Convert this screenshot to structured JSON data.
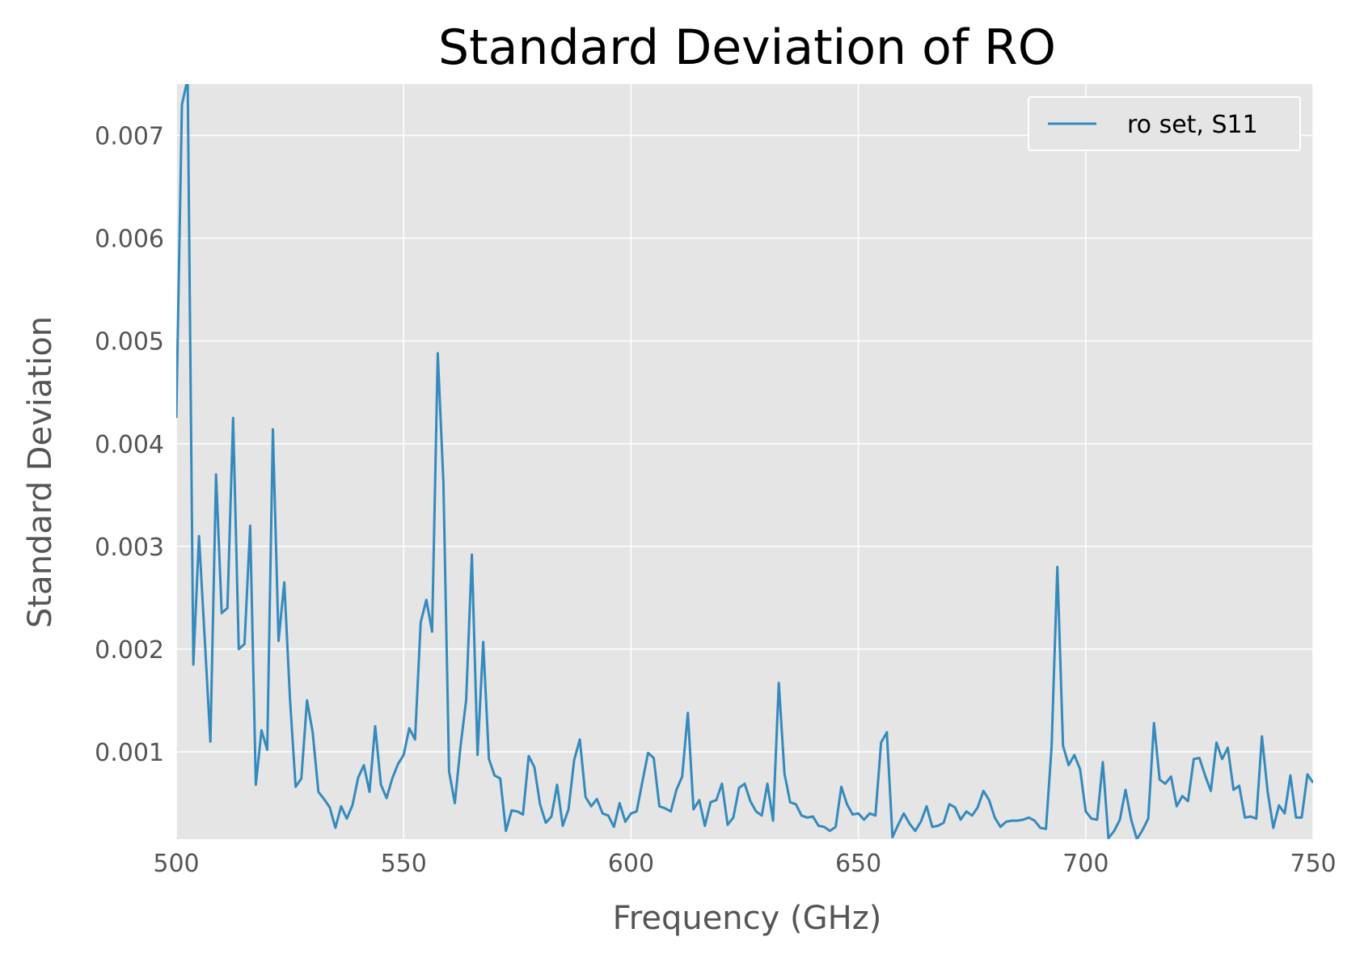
{
  "chart_data": {
    "type": "line",
    "title": "Standard Deviation of RO",
    "xlabel": "Frequency (GHz)",
    "ylabel": "Standard Deviation",
    "xlim": [
      500,
      750
    ],
    "ylim": [
      0.00015,
      0.0075
    ],
    "xticks": [
      500,
      550,
      600,
      650,
      700,
      750
    ],
    "xtick_labels": [
      "500",
      "550",
      "600",
      "650",
      "700",
      "750"
    ],
    "yticks": [
      0.001,
      0.002,
      0.003,
      0.004,
      0.005,
      0.006,
      0.007
    ],
    "ytick_labels": [
      "0.001",
      "0.002",
      "0.003",
      "0.004",
      "0.005",
      "0.006",
      "0.007"
    ],
    "grid": true,
    "legend_position": "top-right",
    "background": "#e5e5e5",
    "series": [
      {
        "name": "ro set, S11",
        "color": "#348abd",
        "x": [
          500,
          501.25,
          502.5,
          503.75,
          505,
          506.25,
          507.5,
          508.75,
          510,
          511.25,
          512.5,
          513.75,
          515,
          516.25,
          517.5,
          518.75,
          520,
          521.25,
          522.5,
          523.75,
          525,
          526.25,
          527.5,
          528.75,
          530,
          531.25,
          532.5,
          533.75,
          535,
          536.25,
          537.5,
          538.75,
          540,
          541.25,
          542.5,
          543.75,
          545,
          546.25,
          547.5,
          548.75,
          550,
          551.25,
          552.5,
          553.75,
          555,
          556.25,
          557.5,
          558.75,
          560,
          561.25,
          562.5,
          563.75,
          565,
          566.25,
          567.5,
          568.75,
          570,
          571.25,
          572.5,
          573.75,
          575,
          576.25,
          577.5,
          578.75,
          580,
          581.25,
          582.5,
          583.75,
          585,
          586.25,
          587.5,
          588.75,
          590,
          591.25,
          592.5,
          593.75,
          595,
          596.25,
          597.5,
          598.75,
          600,
          601.25,
          602.5,
          603.75,
          605,
          606.25,
          607.5,
          608.75,
          610,
          611.25,
          612.5,
          613.75,
          615,
          616.25,
          617.5,
          618.75,
          620,
          621.25,
          622.5,
          623.75,
          625,
          626.25,
          627.5,
          628.75,
          630,
          631.25,
          632.5,
          633.75,
          635,
          636.25,
          637.5,
          638.75,
          640,
          641.25,
          642.5,
          643.75,
          645,
          646.25,
          647.5,
          648.75,
          650,
          651.25,
          652.5,
          653.75,
          655,
          656.25,
          657.5,
          658.75,
          660,
          661.25,
          662.5,
          663.75,
          665,
          666.25,
          667.5,
          668.75,
          670,
          671.25,
          672.5,
          673.75,
          675,
          676.25,
          677.5,
          678.75,
          680,
          681.25,
          682.5,
          683.75,
          685,
          686.25,
          687.5,
          688.75,
          690,
          691.25,
          692.5,
          693.75,
          695,
          696.25,
          697.5,
          698.75,
          700,
          701.25,
          702.5,
          703.75,
          705,
          706.25,
          707.5,
          708.75,
          710,
          711.25,
          712.5,
          713.75,
          715,
          716.25,
          717.5,
          718.75,
          720,
          721.25,
          722.5,
          723.75,
          725,
          726.25,
          727.5,
          728.75,
          730,
          731.25,
          732.5,
          733.75,
          735,
          736.25,
          737.5,
          738.75,
          740,
          741.25,
          742.5,
          743.75,
          745,
          746.25,
          747.5,
          748.75,
          750
        ],
        "y": [
          0.00425,
          0.0073,
          0.00755,
          0.00185,
          0.0031,
          0.0021,
          0.0011,
          0.0037,
          0.00235,
          0.0024,
          0.00425,
          0.002,
          0.00205,
          0.0032,
          0.00068,
          0.00121,
          0.00102,
          0.00414,
          0.00208,
          0.00265,
          0.00152,
          0.00066,
          0.00074,
          0.0015,
          0.00119,
          0.00061,
          0.00054,
          0.00046,
          0.00026,
          0.00047,
          0.00035,
          0.00048,
          0.00075,
          0.00087,
          0.00061,
          0.00125,
          0.00068,
          0.00055,
          0.00074,
          0.00088,
          0.00097,
          0.00123,
          0.00112,
          0.00226,
          0.00248,
          0.00217,
          0.00488,
          0.00362,
          0.00081,
          0.0005,
          0.00105,
          0.0015,
          0.00292,
          0.00097,
          0.00207,
          0.00093,
          0.00077,
          0.00074,
          0.00023,
          0.00043,
          0.00042,
          0.00039,
          0.00096,
          0.00085,
          0.00049,
          0.00031,
          0.00037,
          0.00068,
          0.00028,
          0.00044,
          0.00092,
          0.00112,
          0.00056,
          0.00047,
          0.00054,
          0.0004,
          0.00038,
          0.00027,
          0.0005,
          0.00032,
          0.0004,
          0.00042,
          0.00071,
          0.00099,
          0.00094,
          0.00047,
          0.00045,
          0.00042,
          0.00063,
          0.00076,
          0.00138,
          0.00044,
          0.00053,
          0.00028,
          0.00051,
          0.00053,
          0.00069,
          0.00029,
          0.00036,
          0.00065,
          0.00069,
          0.00052,
          0.00042,
          0.00038,
          0.00069,
          0.00033,
          0.00167,
          0.00079,
          0.00051,
          0.00049,
          0.00038,
          0.00036,
          0.00037,
          0.00028,
          0.00027,
          0.00023,
          0.00027,
          0.00066,
          0.00049,
          0.00039,
          0.0004,
          0.00034,
          0.0004,
          0.00038,
          0.00109,
          0.00119,
          0.00017,
          0.00029,
          0.0004,
          0.0003,
          0.00023,
          0.00032,
          0.00047,
          0.00027,
          0.00028,
          0.00031,
          0.00049,
          0.00046,
          0.00034,
          0.00042,
          0.00038,
          0.00046,
          0.00062,
          0.00053,
          0.00036,
          0.00027,
          0.00032,
          0.00033,
          0.00033,
          0.00034,
          0.00036,
          0.00033,
          0.00026,
          0.00025,
          0.00105,
          0.0028,
          0.00106,
          0.00087,
          0.00097,
          0.00083,
          0.00042,
          0.00035,
          0.00034,
          0.0009,
          0.00016,
          0.00023,
          0.00034,
          0.00063,
          0.00034,
          0.00015,
          0.00024,
          0.00035,
          0.00128,
          0.00073,
          0.00069,
          0.00076,
          0.00047,
          0.00057,
          0.00052,
          0.00093,
          0.00094,
          0.00077,
          0.00062,
          0.00109,
          0.00093,
          0.00104,
          0.00063,
          0.00067,
          0.00036,
          0.00037,
          0.00035,
          0.00115,
          0.00061,
          0.00026,
          0.00048,
          0.0004,
          0.00077,
          0.00036,
          0.00036,
          0.00078,
          0.0007
        ]
      }
    ]
  }
}
